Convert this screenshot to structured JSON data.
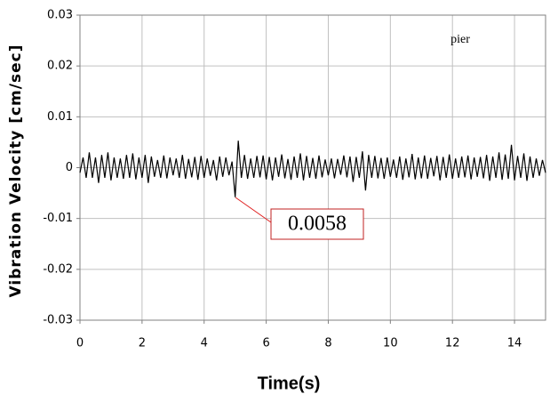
{
  "chart_data": {
    "type": "line",
    "xlabel": "Time(s)",
    "ylabel": "Vibration  Velocity  [cm/sec]",
    "annotations": [
      "pier",
      "0.0058"
    ],
    "xlim": [
      0,
      15
    ],
    "xticks": [
      0,
      2,
      4,
      6,
      8,
      10,
      12,
      14
    ],
    "ylim": [
      -0.03,
      0.03
    ],
    "yticks": [
      0.03,
      0.02,
      0.01,
      0,
      -0.01,
      -0.02,
      -0.03
    ],
    "grid": true,
    "x": [
      0,
      0.1,
      0.2,
      0.3,
      0.4,
      0.5,
      0.6,
      0.7,
      0.8,
      0.9,
      1,
      1.1,
      1.2,
      1.3,
      1.4,
      1.5,
      1.6,
      1.7,
      1.8,
      1.9,
      2,
      2.1,
      2.2,
      2.3,
      2.4,
      2.5,
      2.6,
      2.7,
      2.8,
      2.9,
      3,
      3.1,
      3.2,
      3.3,
      3.4,
      3.5,
      3.6,
      3.7,
      3.8,
      3.9,
      4,
      4.1,
      4.2,
      4.3,
      4.4,
      4.5,
      4.6,
      4.7,
      4.8,
      4.9,
      5,
      5.1,
      5.2,
      5.3,
      5.4,
      5.5,
      5.6,
      5.7,
      5.8,
      5.9,
      6,
      6.1,
      6.2,
      6.3,
      6.4,
      6.5,
      6.6,
      6.7,
      6.8,
      6.9,
      7,
      7.1,
      7.2,
      7.3,
      7.4,
      7.5,
      7.6,
      7.7,
      7.8,
      7.9,
      8,
      8.1,
      8.2,
      8.3,
      8.4,
      8.5,
      8.6,
      8.7,
      8.8,
      8.9,
      9,
      9.1,
      9.2,
      9.3,
      9.4,
      9.5,
      9.6,
      9.7,
      9.8,
      9.9,
      10,
      10.1,
      10.2,
      10.3,
      10.4,
      10.5,
      10.6,
      10.7,
      10.8,
      10.9,
      11,
      11.1,
      11.2,
      11.3,
      11.4,
      11.5,
      11.6,
      11.7,
      11.8,
      11.9,
      12,
      12.1,
      12.2,
      12.3,
      12.4,
      12.5,
      12.6,
      12.7,
      12.8,
      12.9,
      13,
      13.1,
      13.2,
      13.3,
      13.4,
      13.5,
      13.6,
      13.7,
      13.8,
      13.9,
      14,
      14.1,
      14.2,
      14.3,
      14.4,
      14.5,
      14.6,
      14.7,
      14.8,
      14.9,
      15
    ],
    "series": [
      {
        "color": "#000000",
        "values": [
          -0.001,
          0.002,
          -0.002,
          0.003,
          -0.002,
          0.002,
          -0.003,
          0.0025,
          -0.002,
          0.003,
          -0.0025,
          0.002,
          -0.002,
          0.0018,
          -0.0022,
          0.0025,
          -0.002,
          0.0028,
          -0.0023,
          0.002,
          -0.002,
          0.0025,
          -0.003,
          0.0022,
          -0.0018,
          0.0015,
          -0.002,
          0.0024,
          -0.0021,
          0.002,
          -0.0015,
          0.0018,
          -0.002,
          0.0025,
          -0.0022,
          0.0017,
          -0.0019,
          0.0021,
          -0.0024,
          0.0023,
          -0.002,
          0.0018,
          -0.0016,
          0.0015,
          -0.0025,
          0.0022,
          -0.0018,
          0.002,
          -0.0015,
          0.0012,
          -0.0058,
          0.0053,
          -0.002,
          0.0025,
          -0.0022,
          0.0018,
          -0.002,
          0.0023,
          -0.0019,
          0.0024,
          -0.0023,
          0.0021,
          -0.0025,
          0.002,
          -0.0018,
          0.0026,
          -0.0021,
          0.0017,
          -0.0024,
          0.0022,
          -0.002,
          0.0028,
          -0.0025,
          0.0023,
          -0.002,
          0.0019,
          -0.0022,
          0.0024,
          -0.0019,
          0.0016,
          -0.0015,
          0.0018,
          -0.0021,
          0.0017,
          -0.0014,
          0.0024,
          -0.0019,
          0.0022,
          -0.0028,
          0.0021,
          -0.002,
          0.0032,
          -0.0045,
          0.0025,
          -0.002,
          0.0023,
          -0.0021,
          0.0019,
          -0.0022,
          0.002,
          -0.0018,
          0.0016,
          -0.002,
          0.0022,
          -0.0024,
          0.0018,
          -0.0019,
          0.0027,
          -0.0023,
          0.002,
          -0.0021,
          0.0024,
          -0.0022,
          0.0019,
          -0.0017,
          0.0023,
          -0.0025,
          0.0021,
          -0.002,
          0.0026,
          -0.0022,
          0.0018,
          -0.002,
          0.0022,
          -0.0019,
          0.0024,
          -0.0023,
          0.002,
          -0.0018,
          0.0021,
          -0.0021,
          0.0025,
          -0.0026,
          0.0022,
          -0.002,
          0.003,
          -0.0024,
          0.0026,
          -0.0022,
          0.0045,
          -0.0025,
          0.0023,
          -0.002,
          0.0028,
          -0.0026,
          0.0022,
          -0.002,
          0.0018,
          -0.0016,
          0.0015,
          -0.001
        ]
      }
    ]
  }
}
